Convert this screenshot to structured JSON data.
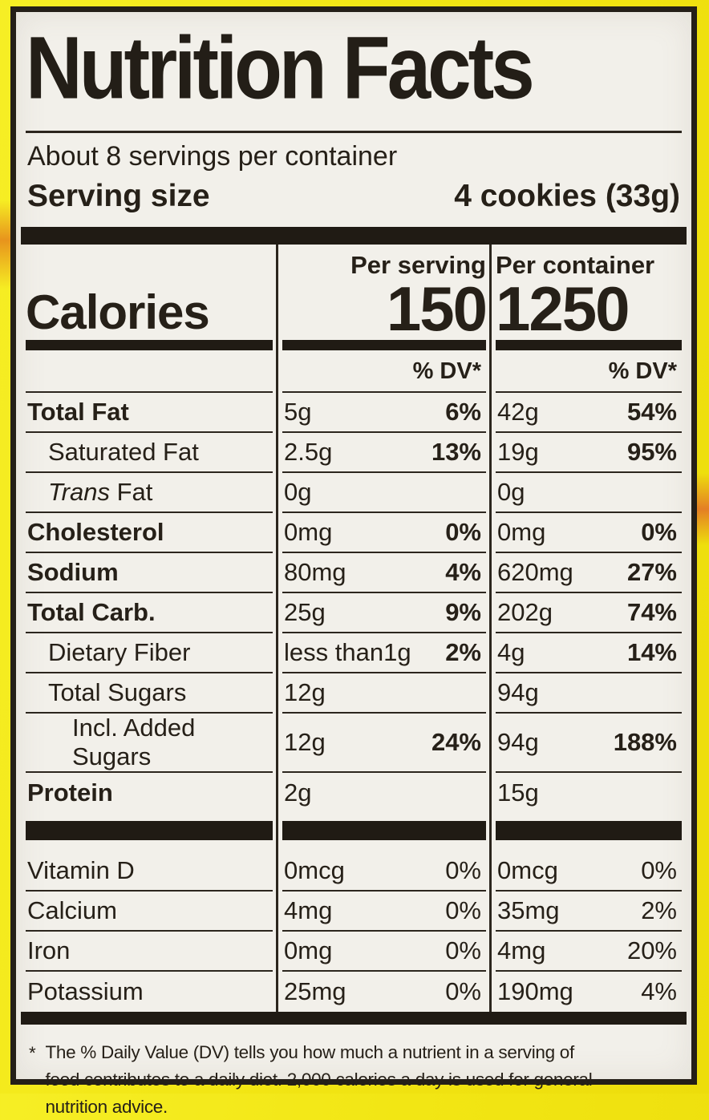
{
  "label": {
    "title": "Nutrition Facts",
    "servings_per_container": "About 8 servings per container",
    "serving_size": {
      "label": "Serving size",
      "value": "4 cookies (33g)"
    },
    "calories": {
      "label": "Calories",
      "per_serving": {
        "header": "Per serving",
        "value": "150",
        "dv_header": "% DV*"
      },
      "per_container": {
        "header": "Per container",
        "value": "1250",
        "dv_header": "% DV*"
      }
    },
    "rows": [
      {
        "name": "Total Fat",
        "s": "5g",
        "s_dv": "6%",
        "c": "42g",
        "c_dv": "54%"
      },
      {
        "name": "Saturated Fat",
        "s": "2.5g",
        "s_dv": "13%",
        "c": "19g",
        "c_dv": "95%"
      },
      {
        "name_i": "Trans",
        "name": " Fat",
        "s": "0g",
        "c": "0g"
      },
      {
        "name": "Cholesterol",
        "s": "0mg",
        "s_dv": "0%",
        "c": "0mg",
        "c_dv": "0%"
      },
      {
        "name": "Sodium",
        "s": "80mg",
        "s_dv": "4%",
        "c": "620mg",
        "c_dv": "27%"
      },
      {
        "name": "Total Carb.",
        "s": "25g",
        "s_dv": "9%",
        "c": "202g",
        "c_dv": "74%"
      },
      {
        "name": "Dietary Fiber",
        "s": "less than1g",
        "s_dv": "2%",
        "c": "4g",
        "c_dv": "14%"
      },
      {
        "name": "Total Sugars",
        "s": "12g",
        "c": "94g"
      },
      {
        "name": "Incl. Added Sugars",
        "s": "12g",
        "s_dv": "24%",
        "c": "94g",
        "c_dv": "188%"
      },
      {
        "name": "Protein",
        "s": "2g",
        "c": "15g"
      }
    ],
    "micronutrients": [
      {
        "name": "Vitamin D",
        "s": "0mcg",
        "s_dv": "0%",
        "c": "0mcg",
        "c_dv": "0%"
      },
      {
        "name": "Calcium",
        "s": "4mg",
        "s_dv": "0%",
        "c": "35mg",
        "c_dv": "2%"
      },
      {
        "name": "Iron",
        "s": "0mg",
        "s_dv": "0%",
        "c": "4mg",
        "c_dv": "20%"
      },
      {
        "name": "Potassium",
        "s": "25mg",
        "s_dv": "0%",
        "c": "190mg",
        "c_dv": "4%"
      }
    ],
    "footnote": {
      "marker": "*",
      "lines": [
        "The % Daily Value (DV) tells you how much a nutrient in a serving of",
        "food contributes to a daily diet. 2,000 calories a day is used for general",
        "nutrition advice."
      ]
    },
    "colors": {
      "package_yellow": "#f2e614",
      "label_bg": "#f2f0ea",
      "ink": "#201b14"
    }
  }
}
